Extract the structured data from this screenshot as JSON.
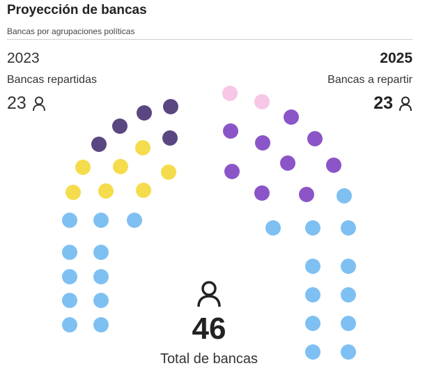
{
  "header": {
    "title": "Proyección de bancas",
    "subtitle": "Bancas por agrupaciones políticas"
  },
  "left_panel": {
    "year": "2023",
    "caption": "Bancas repartidas",
    "count": "23"
  },
  "right_panel": {
    "year": "2025",
    "caption": "Bancas a repartir",
    "count": "23"
  },
  "total": {
    "value": "46",
    "label": "Total de bancas"
  },
  "icons": {
    "seat_count": "person-icon"
  },
  "chart_data": {
    "type": "parliament",
    "title": "Proyección de bancas",
    "subtitle": "Bancas por agrupaciones políticas",
    "total_seats": 46,
    "halves": [
      {
        "year": "2023",
        "label": "Bancas repartidas",
        "seats": 23,
        "groups": [
          {
            "color": "#7fc0f3",
            "seats": 11
          },
          {
            "color": "#f5dc4c",
            "seats": 7
          },
          {
            "color": "#5a4680",
            "seats": 5
          }
        ]
      },
      {
        "year": "2025",
        "label": "Bancas a repartir",
        "seats": 23,
        "groups": [
          {
            "color": "#f6c7e6",
            "seats": 2
          },
          {
            "color": "#8b55c8",
            "seats": 9
          },
          {
            "color": "#7fc0f3",
            "seats": 12
          }
        ]
      }
    ]
  }
}
